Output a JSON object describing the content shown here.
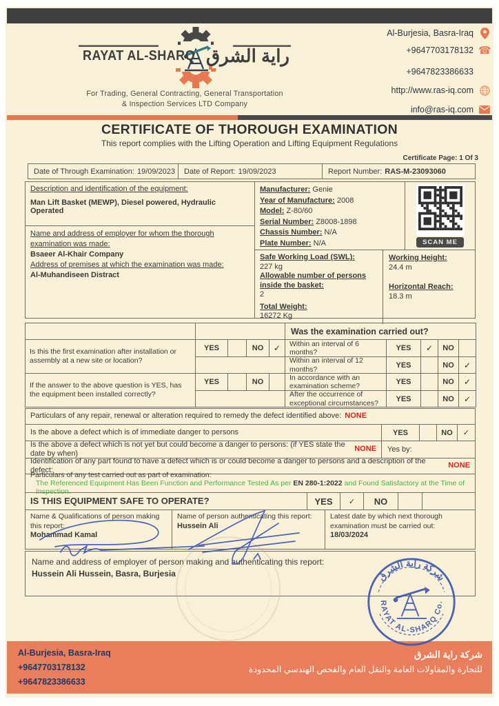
{
  "header": {
    "company_en": "RAYAT AL-SHARQ",
    "company_ar": "راية الشرق",
    "tagline1": "For Trading, General Contracting, General Transportation",
    "tagline2": "& Inspection Services LTD Company",
    "address": "Al-Burjesia, Basra-Iraq",
    "phone1": "+9647703178132",
    "phone2": "+9647823386633",
    "website": "http://www.ras-iq.com",
    "email": "info@ras-iq.com"
  },
  "title": {
    "heading": "CERTIFICATE OF THOROUGH EXAMINATION",
    "subheading": "This report complies with the Lifting Operation and Lifting Equipment Regulations",
    "page_label": "Certificate Page: 1 Of 3"
  },
  "meta": {
    "exam_date_label": "Date of Through Examination:",
    "exam_date": "19/09/2023",
    "report_date_label": "Date of Report:",
    "report_date": "19/09/2023",
    "report_no_label": "Report Number:",
    "report_no": "RAS-M-23093060"
  },
  "equipment": {
    "desc_label": "Description and identification of the equipment:",
    "desc_value": "Man Lift Basket (MEWP), Diesel powered, Hydraulic Operated",
    "employer_label": "Name and address of employer for whom the thorough examination was made:",
    "employer_value": "Bsaeer Al-Khair Company",
    "premises_label": "Address of premises at which the examination was made:",
    "premises_value": "Al-Muhandiseen Distract",
    "manufacturer_label": "Manufacturer:",
    "manufacturer": "Genie",
    "year_label": "Year of Manufacture:",
    "year": "2008",
    "model_label": "Model:",
    "model": "Z-80/60",
    "serial_label": "Serial Number:",
    "serial": "Z8008-1898",
    "chassis_label": "Chassis Number:",
    "chassis": "N/A",
    "plate_label": "Plate Number:",
    "plate": "N/A",
    "swl_label": "Safe Working Load (SWL):",
    "swl": "227 kg",
    "persons_label": "Allowable number of persons inside the basket:",
    "persons": "2",
    "weight_label": "Total Weight:",
    "weight": "16272 Kg",
    "height_label": "Working Height:",
    "height": "24.4 m",
    "reach_label": "Horizontal Reach:",
    "reach": "18.3 m",
    "qr_label": "SCAN ME"
  },
  "labels": {
    "yes": "YES",
    "no": "NO"
  },
  "exam": {
    "header": "Was the examination carried out?",
    "q1": "Is this the first examination after installation or assembly at a new site or location?",
    "q1_yes": "",
    "q1_no": "✓",
    "q2": "If the answer to the above question is YES, has the equipment been installed correctly?",
    "q2_yes": "",
    "q2_no": "",
    "r1": "Within an interval of 6 months?",
    "r1_yes": "✓",
    "r1_no": "",
    "r2": "Within an interval of 12 months?",
    "r2_yes": "",
    "r2_no": "✓",
    "r3": "In accordance with an examination scheme?",
    "r3_yes": "",
    "r3_no": "✓",
    "r4": "After the occurrence of exceptional circumstances?",
    "r4_yes": "",
    "r4_no": "✓"
  },
  "defects": {
    "repair_label": "Particulars of any repair, renewal or alteration required to remedy the defect identified above:",
    "repair_value": "NONE",
    "immediate_label": "Is the above a defect which is of immediate danger to persons",
    "immediate_yes": "",
    "immediate_no": "✓",
    "could_label": "Is the above a defect which is not yet but could become a danger to persons: (if YES state the date by when)",
    "could_value": "NONE",
    "yes_by_label": "Yes by:",
    "identification_label": "Identification of any part found to have a defect which is or could become a danger to persons and a description of the defect:",
    "identification_value": "NONE",
    "test_label": "Particulars of any test carried out as part of examination:",
    "test_green1": "The Referenced Equipment Has Been Function and Performance Tested As per",
    "test_standard": "EN 280-1:2022",
    "test_green2": "and Found Satisfactory at the Time of Inspection.",
    "safe_label": "IS THIS EQUIPMENT SAFE TO OPERATE?",
    "safe_yes": "✓",
    "safe_no": ""
  },
  "signoff": {
    "maker_label": "Name & Qualifications of person making this report:",
    "maker_name": "Mohammad Kamal",
    "auth_label": "Name of person authenticating this report:",
    "auth_name": "Hussein Ali",
    "next_label": "Latest date by which next thorough examination must be carried out:",
    "next_date": "18/03/2024",
    "employer_label": "Name and address of employer of person making and authenticating this report:",
    "employer_value": "Hussein Ali Hussein, Basra, Burjesia"
  },
  "stamp": {
    "ar": "شركة راية الشرق",
    "en": "RAYAT AL-SHARQ Co."
  },
  "footer": {
    "address": "Al-Burjesia, Basra-Iraq",
    "phone1": "+9647703178132",
    "phone2": "+9647823386633",
    "ar1": "شركة راية الشرق",
    "ar2": "للتجارة والمقاولات العامة والنقل العام والفحص الهندسي المحدودة"
  },
  "colors": {
    "accent": "#e8784f",
    "stamp_blue": "#3a53b4",
    "none_red": "#dd1f1f",
    "pass_green": "#4fae47"
  }
}
